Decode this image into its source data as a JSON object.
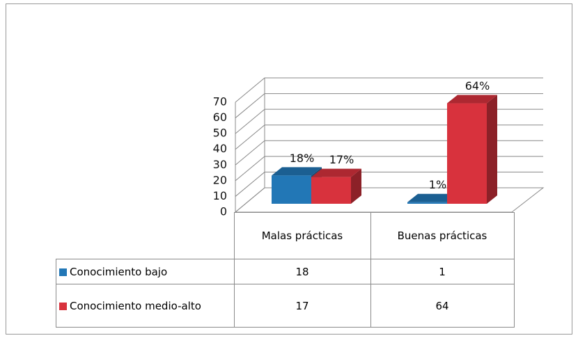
{
  "chart_data": {
    "type": "bar3d",
    "categories": [
      "Malas prácticas",
      "Buenas prácticas"
    ],
    "series": [
      {
        "name": "Conocimiento bajo",
        "color": "#2277b6",
        "values": [
          18,
          1
        ],
        "value_labels": [
          "18%",
          "1%"
        ]
      },
      {
        "name": "Conocimiento medio-alto",
        "color": "#d8323d",
        "values": [
          17,
          64
        ],
        "value_labels": [
          "17%",
          "64%"
        ]
      }
    ],
    "ylim": [
      0,
      70
    ],
    "yticks": [
      0,
      10,
      20,
      30,
      40,
      50,
      60,
      70
    ],
    "grid": true
  }
}
